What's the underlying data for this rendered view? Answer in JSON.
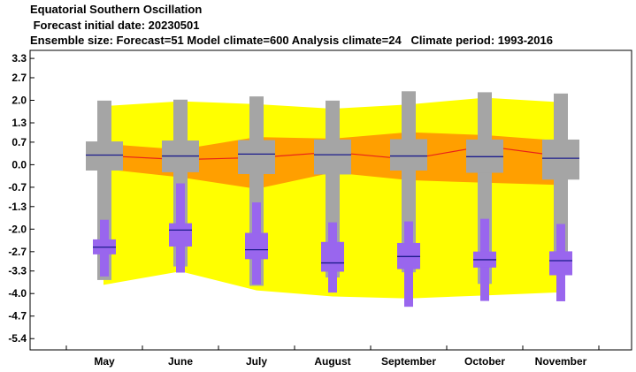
{
  "header": {
    "title": "Equatorial Southern Oscillation",
    "subtitle": " Forecast initial date: 20230501",
    "info": "Ensemble size: Forecast=51 Model climate=600 Analysis climate=24   Climate period: 1993-2016"
  },
  "colors": {
    "outer_band": "#ffff00",
    "inner_band": "#ff9f00",
    "median_line": "#e8201a",
    "model_box": "#a5a5a5",
    "forecast_box": "#9966ee",
    "median_mark": "#1c1c8c"
  },
  "chart_data": {
    "type": "box",
    "title": "Equatorial Southern Oscillation",
    "xlabel": "",
    "ylabel": "",
    "ylim": [
      -5.75,
      3.55
    ],
    "yticks": [
      "3.3",
      "2.7",
      "2.0",
      "1.3",
      "0.7",
      "0.0",
      "-0.7",
      "-1.3",
      "-2.0",
      "-2.7",
      "-3.3",
      "-4.0",
      "-4.7",
      "-5.4"
    ],
    "categories": [
      "May",
      "June",
      "July",
      "August",
      "September",
      "October",
      "November"
    ],
    "climate_band": {
      "outer_upper": [
        1.82,
        1.97,
        1.88,
        1.74,
        1.87,
        2.08,
        1.94
      ],
      "outer_lower": [
        -3.73,
        -3.31,
        -3.9,
        -4.09,
        -4.15,
        -4.06,
        -3.96
      ],
      "inner_upper": [
        0.65,
        0.47,
        0.86,
        0.81,
        1.01,
        0.92,
        0.74
      ],
      "inner_lower": [
        -0.13,
        -0.39,
        -0.75,
        -0.24,
        -0.48,
        -0.56,
        -0.63
      ],
      "median": [
        0.28,
        0.16,
        0.22,
        0.39,
        0.17,
        0.58,
        0.26
      ]
    },
    "series": [
      {
        "name": "model_climate",
        "whisker_low": [
          -3.58,
          -3.16,
          -3.76,
          -3.5,
          -3.34,
          -3.7,
          -3.36
        ],
        "box_outer_low": [
          -0.18,
          -0.23,
          -0.29,
          -0.3,
          -0.18,
          -0.25,
          -0.46
        ],
        "box_inner_low": [
          -0.18,
          -0.23,
          -0.29,
          -0.3,
          -0.18,
          -0.25,
          -0.46
        ],
        "median": [
          0.3,
          0.27,
          0.33,
          0.31,
          0.27,
          0.25,
          0.2
        ],
        "box_inner_high": [
          0.72,
          0.75,
          0.76,
          0.78,
          0.79,
          0.78,
          0.78
        ],
        "box_outer_high": [
          0.72,
          0.75,
          0.76,
          0.78,
          0.79,
          0.78,
          0.78
        ],
        "whisker_high": [
          1.99,
          2.02,
          2.12,
          1.99,
          2.28,
          2.25,
          2.21
        ]
      },
      {
        "name": "forecast",
        "whisker_low": [
          -3.47,
          -3.35,
          -3.72,
          -3.97,
          -4.41,
          -4.23,
          -4.24
        ],
        "box_outer_low": [
          -2.78,
          -2.54,
          -2.93,
          -3.32,
          -3.24,
          -3.19,
          -3.43
        ],
        "box_inner_low": [
          -2.78,
          -2.54,
          -2.93,
          -3.32,
          -3.24,
          -3.19,
          -3.43
        ],
        "median": [
          -2.56,
          -2.03,
          -2.64,
          -3.05,
          -2.85,
          -2.95,
          -2.98
        ],
        "box_inner_high": [
          -2.32,
          -1.82,
          -2.12,
          -2.4,
          -2.43,
          -2.7,
          -2.69
        ],
        "box_outer_high": [
          -2.32,
          -1.82,
          -2.12,
          -2.4,
          -2.43,
          -2.7,
          -2.69
        ],
        "whisker_high": [
          -1.71,
          -0.58,
          -1.17,
          -1.79,
          -1.76,
          -1.68,
          -1.84
        ]
      }
    ],
    "grid": false,
    "legend": "none"
  }
}
